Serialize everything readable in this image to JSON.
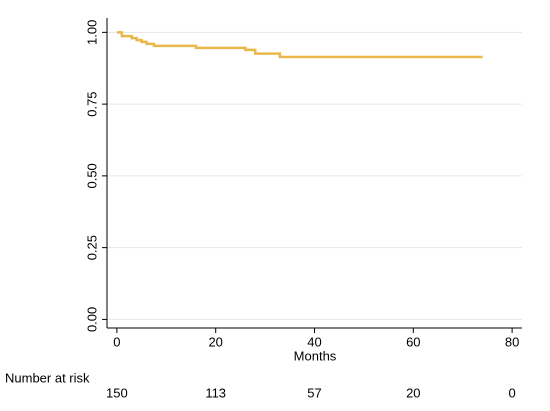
{
  "chart_data": {
    "type": "step",
    "xlabel": "Months",
    "series": [
      {
        "color": "#e8b94a",
        "x": [
          0,
          1,
          3,
          4,
          5,
          6,
          7.5,
          16,
          26,
          28,
          33,
          74
        ],
        "values": [
          1.0,
          0.987,
          0.98,
          0.973,
          0.967,
          0.96,
          0.953,
          0.946,
          0.939,
          0.926,
          0.914,
          0.914
        ]
      }
    ],
    "xlim": [
      -2,
      82
    ],
    "xticks": [
      0,
      20,
      40,
      60,
      80
    ],
    "ylim": [
      -0.03,
      1.05
    ],
    "yticks": [
      {
        "value": 0,
        "label": "0.00"
      },
      {
        "value": 0.25,
        "label": "0.25"
      },
      {
        "value": 0.5,
        "label": "0.50"
      },
      {
        "value": 0.75,
        "label": "0.75"
      },
      {
        "value": 1,
        "label": "1.00"
      }
    ],
    "grid": true,
    "number_at_risk": {
      "label": "Number at risk",
      "values": [
        150,
        113,
        57,
        20,
        0
      ]
    }
  }
}
